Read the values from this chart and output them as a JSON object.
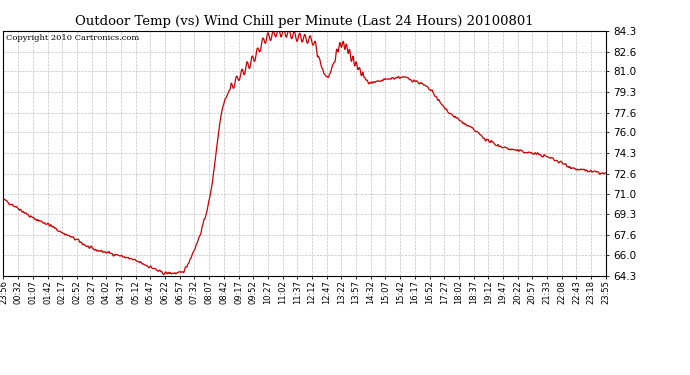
{
  "title": "Outdoor Temp (vs) Wind Chill per Minute (Last 24 Hours) 20100801",
  "copyright": "Copyright 2010 Cartronics.com",
  "line_color": "#cc0000",
  "bg_color": "#ffffff",
  "plot_bg_color": "#ffffff",
  "grid_color": "#bbbbbb",
  "ylim": [
    64.3,
    84.3
  ],
  "yticks": [
    64.3,
    66.0,
    67.6,
    69.3,
    71.0,
    72.6,
    74.3,
    76.0,
    77.6,
    79.3,
    81.0,
    82.6,
    84.3
  ],
  "xtick_labels": [
    "23:56",
    "00:32",
    "01:07",
    "01:42",
    "02:17",
    "02:52",
    "03:27",
    "04:02",
    "04:37",
    "05:12",
    "05:47",
    "06:22",
    "06:57",
    "07:32",
    "08:07",
    "08:42",
    "09:17",
    "09:52",
    "10:27",
    "11:02",
    "11:37",
    "12:12",
    "12:47",
    "13:22",
    "13:57",
    "14:32",
    "15:07",
    "15:42",
    "16:17",
    "16:52",
    "17:27",
    "18:02",
    "18:37",
    "19:12",
    "19:47",
    "20:22",
    "20:57",
    "21:33",
    "22:08",
    "22:43",
    "23:18",
    "23:55"
  ]
}
